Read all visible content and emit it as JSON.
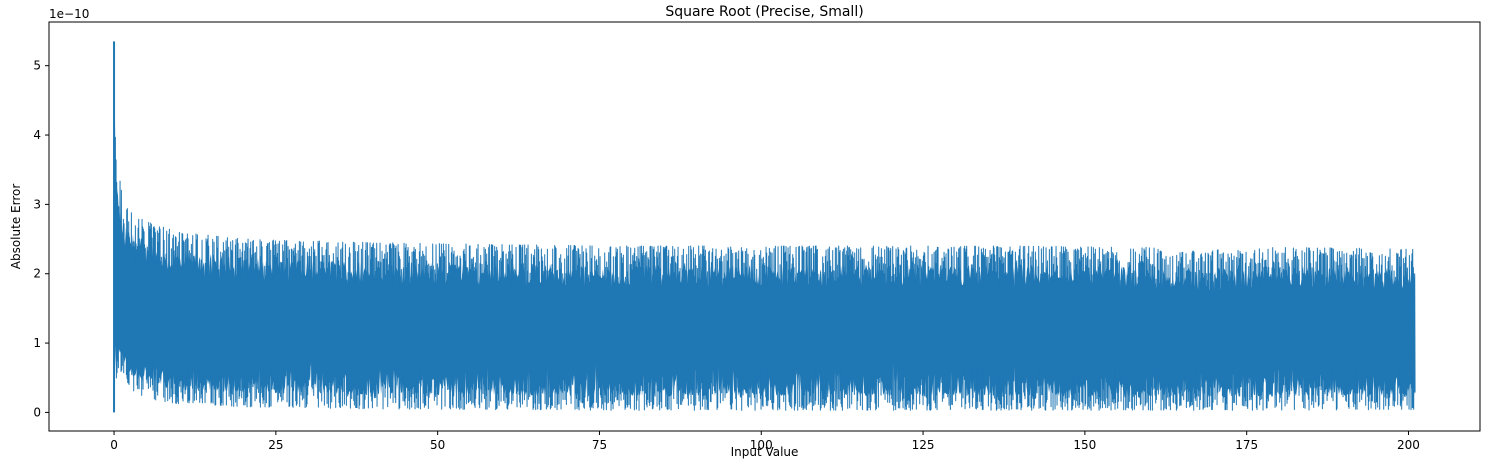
{
  "chart_data": {
    "type": "line",
    "title": "Square Root (Precise, Small)",
    "xlabel": "Input Value",
    "ylabel": "Absolute Error",
    "y_offset_text": "1e−10",
    "xlim": [
      -10.05,
      211.05
    ],
    "ylim": [
      -2.68e-11,
      5.63e-10
    ],
    "x_ticks": [
      0,
      25,
      50,
      75,
      100,
      125,
      150,
      175,
      200
    ],
    "y_ticks": [
      0,
      1e-10,
      2e-10,
      3e-10,
      4e-10,
      5e-10
    ],
    "x_tick_labels": [
      "0",
      "25",
      "50",
      "75",
      "100",
      "125",
      "150",
      "175",
      "200"
    ],
    "y_tick_labels": [
      "0",
      "1",
      "2",
      "3",
      "4",
      "5"
    ],
    "grid": false,
    "legend": "none",
    "series": [
      {
        "color": "#1f77b4",
        "x_range": [
          0,
          201
        ],
        "envelope": {
          "x": [
            0,
            0.3,
            0.6,
            1,
            1.5,
            2,
            3,
            5,
            10,
            20,
            40,
            60,
            80,
            100,
            120,
            140,
            160,
            165,
            180,
            201
          ],
          "upper": [
            5.35e-10,
            3.65e-10,
            3.5e-10,
            3.3e-10,
            2.95e-10,
            2.95e-10,
            2.85e-10,
            2.75e-10,
            2.6e-10,
            2.5e-10,
            2.45e-10,
            2.42e-10,
            2.4e-10,
            2.4e-10,
            2.4e-10,
            2.4e-10,
            2.38e-10,
            2.32e-10,
            2.38e-10,
            2.36e-10
          ],
          "lower": [
            0,
            4.5e-11,
            6.5e-11,
            6e-11,
            5e-11,
            4e-11,
            3e-11,
            2e-11,
            1.2e-11,
            8e-12,
            5e-12,
            4e-12,
            3e-12,
            3e-12,
            3e-12,
            3e-12,
            3e-12,
            3e-12,
            3e-12,
            4e-12
          ]
        }
      }
    ]
  }
}
